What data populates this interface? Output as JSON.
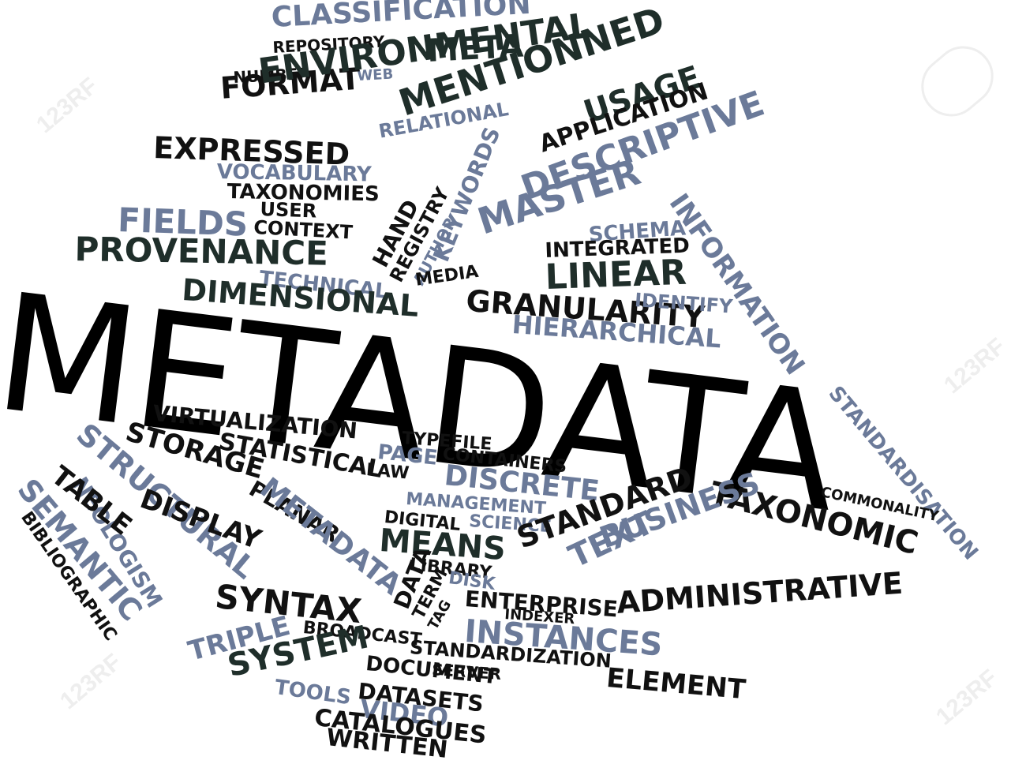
{
  "colors": {
    "dark": "#111111",
    "green": "#1f2e2a",
    "slate": "#6b7a99",
    "black": "#000000"
  },
  "watermark": {
    "text": "123RF",
    "icon": "camera-lens-icon"
  },
  "cloud": {
    "main_word": "METADATA",
    "words": [
      "CLASSIFICATION",
      "REPOSITORY",
      "META",
      "NUMBER",
      "WEB",
      "FORMAT",
      "ENVIRONMENTAL",
      "RELATIONAL",
      "MENTIONNED",
      "USAGE",
      "APPLICATION",
      "EXPRESSED",
      "VOCABULARY",
      "TAXONOMIES",
      "KEYWORDS",
      "DESCRIPTIVE",
      "INFORMATION",
      "USER",
      "FIELDS",
      "CONTEXT",
      "HAND",
      "REGISTRY",
      "AUTHOR",
      "MASTER",
      "SCHEMA",
      "PROVENANCE",
      "INTEGRATED",
      "TECHNICAL",
      "MEDIA",
      "LINEAR",
      "DIMENSIONAL",
      "GRANULARITY",
      "IDENTIFY",
      "HIERARCHICAL",
      "VIRTUALIZATION",
      "TYPEFILE",
      "STANDARDISATION",
      "STRUCTURAL",
      "STORAGE",
      "STATISTICAL",
      "PAGE",
      "CONTAINERS",
      "LAW",
      "DISCRETE",
      "TAXONOMIC",
      "COMMONALITY",
      "NEOLOGISM",
      "TABLE",
      "SEMANTIC",
      "BIBLIOGRAPHIC",
      "DISPLAY",
      "PLANAR",
      "METADATA",
      "MANAGEMENT",
      "DIGITAL",
      "SCIENCE",
      "STANDARD",
      "MEANS",
      "TEXT",
      "BUSINESS",
      "LIBRARY",
      "DISK",
      "DATA",
      "TERM",
      "TAG",
      "ENTERPRISE",
      "SYNTAX",
      "INDEXER",
      "ADMINISTRATIVE",
      "BROADCAST",
      "TRIPLE",
      "INSTANCES",
      "STANDARDIZATION",
      "SERVER",
      "SYSTEM",
      "DOCUMENT",
      "ELEMENT",
      "TOOLS",
      "DATASETS",
      "VIDEO",
      "CATALOGUES",
      "WRITTEN"
    ]
  }
}
